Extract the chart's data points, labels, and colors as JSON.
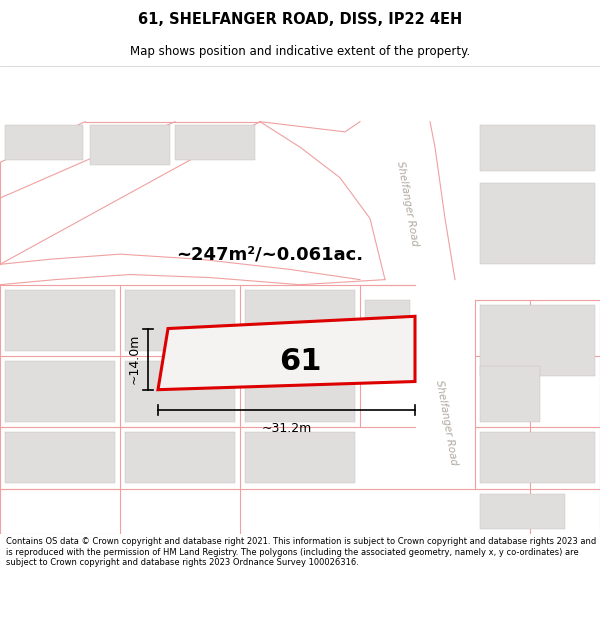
{
  "title_line1": "61, SHELFANGER ROAD, DISS, IP22 4EH",
  "title_line2": "Map shows position and indicative extent of the property.",
  "area_text": "~247m²/~0.061ac.",
  "dim_height": "~14.0m",
  "dim_width": "~31.2m",
  "plot_number": "61",
  "road_label_top": "Shelfanger Road",
  "road_label_bottom": "Shelfanger Road",
  "footer_text": "Contains OS data © Crown copyright and database right 2021. This information is subject to Crown copyright and database rights 2023 and is reproduced with the permission of HM Land Registry. The polygons (including the associated geometry, namely x, y co-ordinates) are subject to Crown copyright and database rights 2023 Ordnance Survey 100026316.",
  "map_bg": "#f7f5f3",
  "block_color": "#e0dedd",
  "road_color": "#ffffff",
  "plot_line_color": "#dd0000",
  "street_line_color": "#f0a0a0",
  "title_bg": "#ffffff",
  "footer_bg": "#ffffff",
  "road_label_color": "#b0a8a0"
}
